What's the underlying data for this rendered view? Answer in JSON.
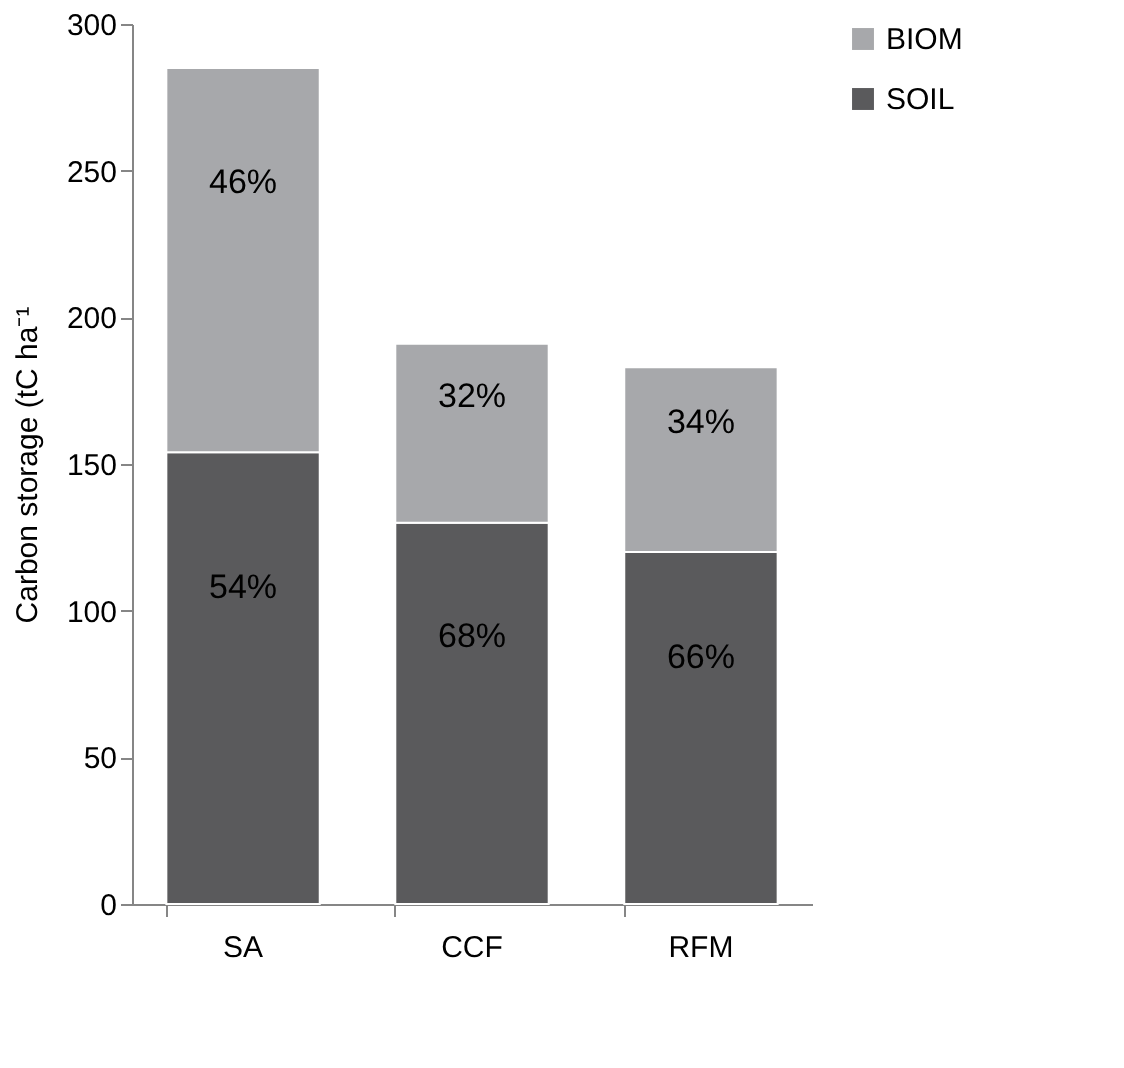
{
  "chart_data": {
    "type": "bar",
    "stacked": true,
    "ylabel": "Carbon storage (tC ha⁻¹",
    "categories": [
      "SA",
      "CCF",
      "RFM"
    ],
    "series": [
      {
        "name": "SOIL",
        "color": "#5a5a5c",
        "values": [
          154,
          130,
          120
        ]
      },
      {
        "name": "BIOM",
        "color": "#a7a8ab",
        "values": [
          131,
          61,
          63
        ]
      }
    ],
    "annotations": [
      "54%",
      "68%",
      "66%",
      "46%",
      "32%",
      "34%"
    ],
    "ylim": [
      0,
      300
    ],
    "yticks": [
      0,
      50,
      100,
      150,
      200,
      250,
      300
    ],
    "grid": false,
    "legend": "right"
  }
}
